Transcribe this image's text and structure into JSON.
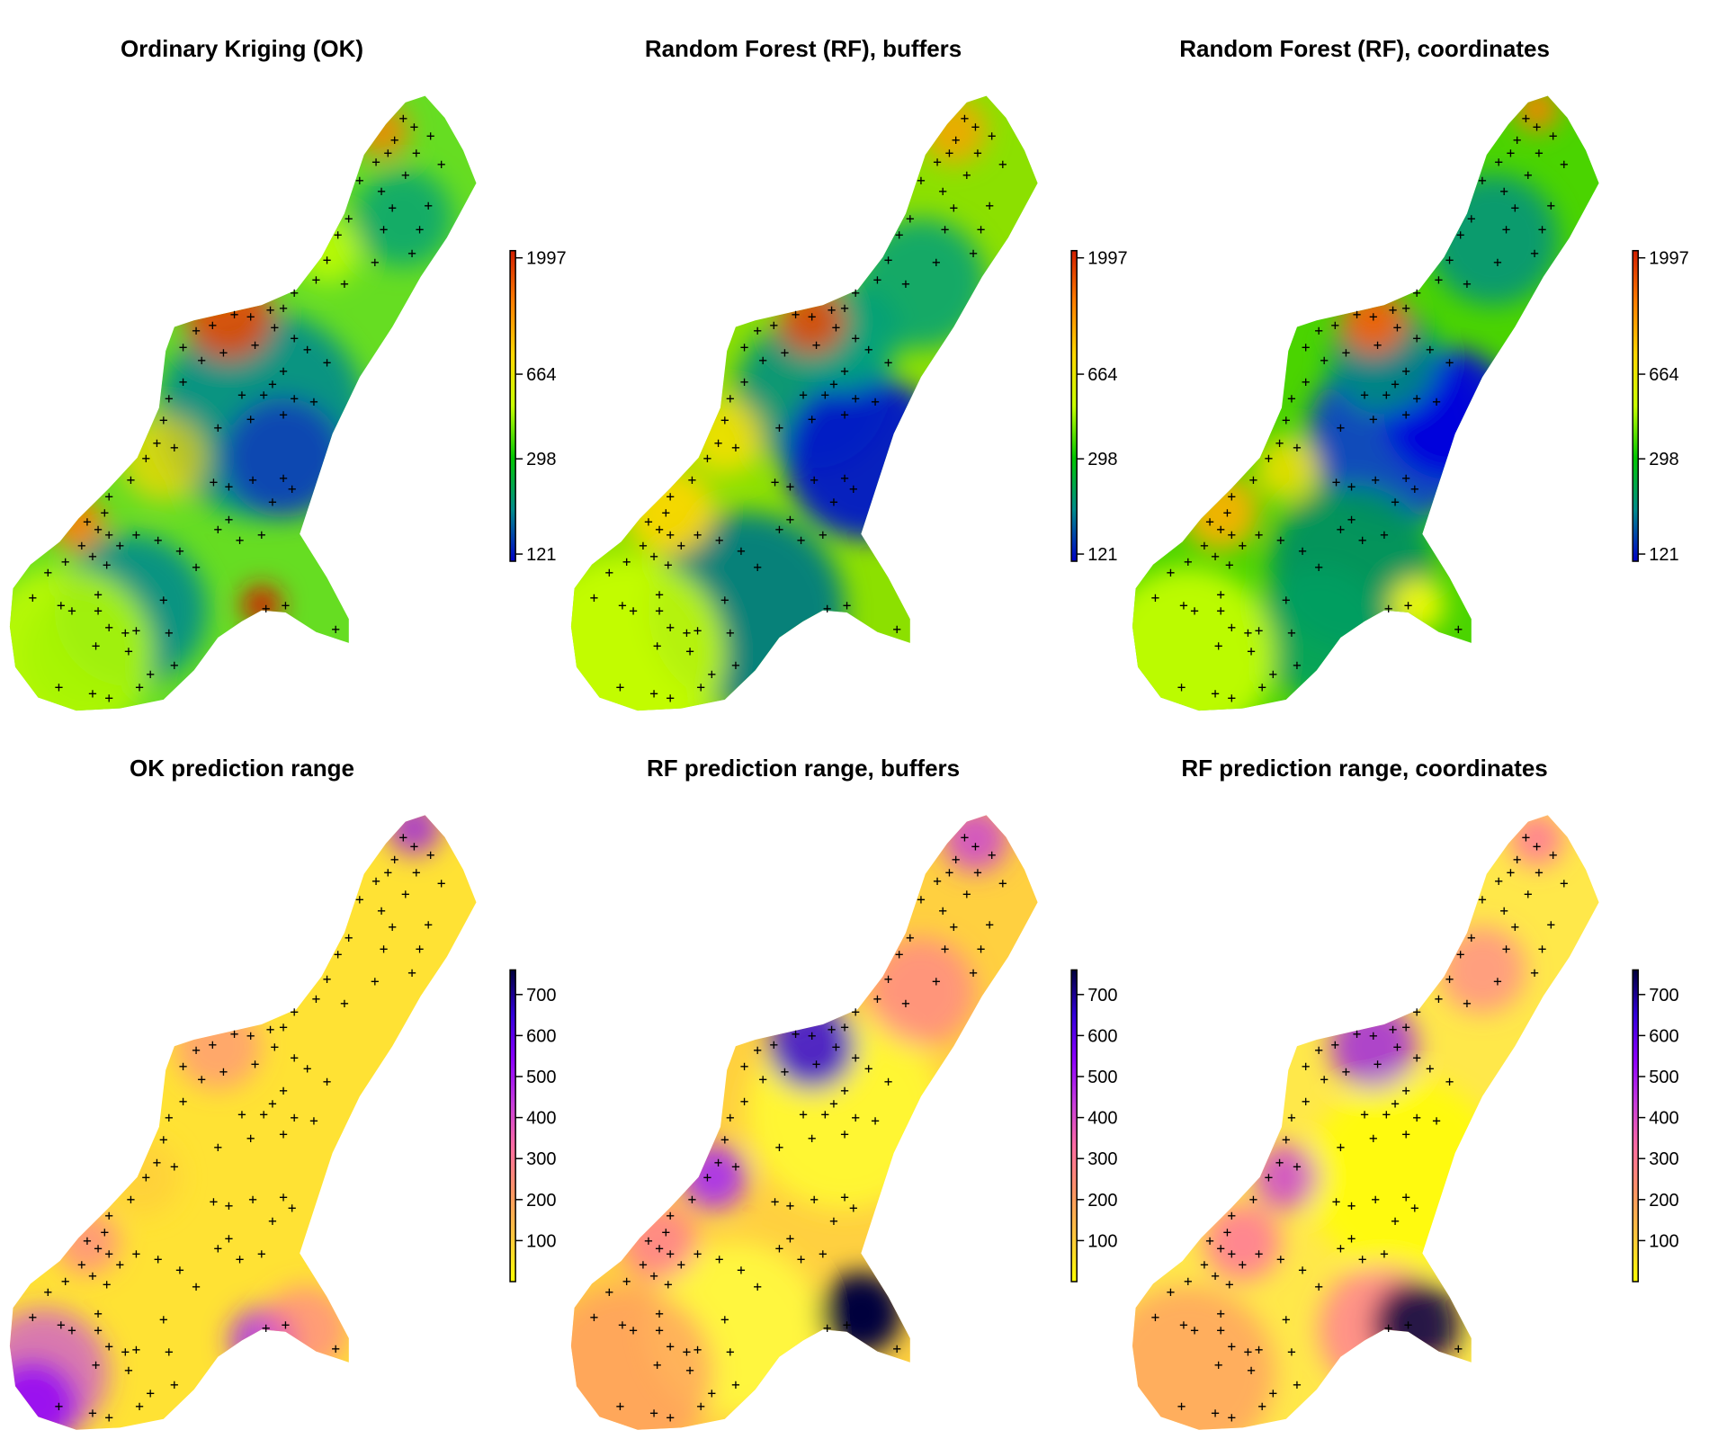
{
  "chart_data": [
    {
      "type": "heatmap",
      "title": "Ordinary Kriging (OK)",
      "palette": "spatial-prediction",
      "legend": {
        "ticks": [
          "121",
          "298",
          "664",
          "1997"
        ],
        "colors": [
          "#0000c8",
          "#008c8c",
          "#00c800",
          "#c8ff00",
          "#ffd700",
          "#ff8000",
          "#d21e00"
        ]
      },
      "observation_marker": "+"
    },
    {
      "type": "heatmap",
      "title": "Random Forest (RF), buffers",
      "palette": "spatial-prediction",
      "legend": {
        "ticks": [
          "121",
          "298",
          "664",
          "1997"
        ],
        "colors": [
          "#0000c8",
          "#008c8c",
          "#00c800",
          "#c8ff00",
          "#ffd700",
          "#ff8000",
          "#d21e00"
        ]
      },
      "observation_marker": "+"
    },
    {
      "type": "heatmap",
      "title": "Random Forest (RF), coordinates",
      "palette": "spatial-prediction",
      "legend": {
        "ticks": [
          "121",
          "298",
          "664",
          "1997"
        ],
        "colors": [
          "#0000c8",
          "#008c8c",
          "#00c800",
          "#c8ff00",
          "#ffd700",
          "#ff8000",
          "#d21e00"
        ]
      },
      "observation_marker": "+"
    },
    {
      "type": "heatmap",
      "title": "OK prediction range",
      "palette": "prediction-range",
      "legend": {
        "ticks": [
          "100",
          "200",
          "300",
          "400",
          "500",
          "600",
          "700"
        ],
        "range": [
          0,
          760
        ],
        "colors": [
          "#ffff00",
          "#ffc83c",
          "#ff9664",
          "#ff6ea0",
          "#c83cdc",
          "#8c00ff",
          "#3200dc",
          "#00003c"
        ]
      },
      "observation_marker": "+"
    },
    {
      "type": "heatmap",
      "title": "RF prediction range, buffers",
      "palette": "prediction-range",
      "legend": {
        "ticks": [
          "100",
          "200",
          "300",
          "400",
          "500",
          "600",
          "700"
        ],
        "range": [
          0,
          760
        ],
        "colors": [
          "#ffff00",
          "#ffc83c",
          "#ff9664",
          "#ff6ea0",
          "#c83cdc",
          "#8c00ff",
          "#3200dc",
          "#00003c"
        ]
      },
      "observation_marker": "+"
    },
    {
      "type": "heatmap",
      "title": "RF prediction range, coordinates",
      "palette": "prediction-range",
      "legend": {
        "ticks": [
          "100",
          "200",
          "300",
          "400",
          "500",
          "600",
          "700"
        ],
        "range": [
          0,
          760
        ],
        "colors": [
          "#ffff00",
          "#ffc83c",
          "#ff9664",
          "#ff6ea0",
          "#c83cdc",
          "#8c00ff",
          "#3200dc",
          "#00003c"
        ]
      },
      "observation_marker": "+"
    }
  ]
}
